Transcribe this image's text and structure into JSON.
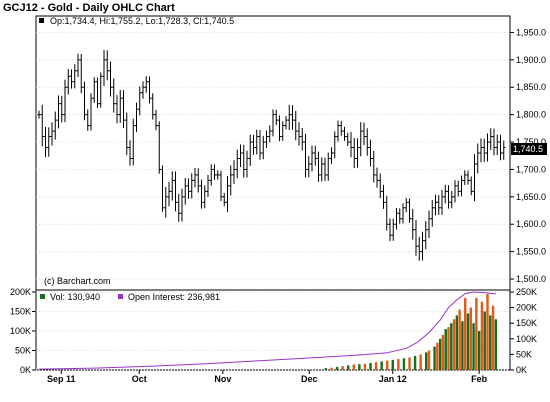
{
  "chart_data": [
    {
      "type": "ohlc",
      "title": "GCJ12 - Gold - Daily OHLC Chart",
      "legend": "Op:1,734.4, Hi:1,755.2, Lo:1,728.3, Cl:1,740.5",
      "last_price_label": "1,740.5",
      "credit": "(c) Barchart.com",
      "ylim": [
        1480,
        1980
      ],
      "y_ticks": [
        1500,
        1550,
        1600,
        1650,
        1700,
        1750,
        1800,
        1850,
        1900,
        1950
      ],
      "y_tick_labels": [
        "1,500.0",
        "1,550.0",
        "1,600.0",
        "1,650.0",
        "1,700.0",
        "1,750.0",
        "1,800.0",
        "1,850.0",
        "1,900.0",
        "1,950.0"
      ],
      "closes": [
        1800,
        1760,
        1740,
        1760,
        1770,
        1790,
        1820,
        1800,
        1850,
        1870,
        1860,
        1880,
        1900,
        1850,
        1800,
        1780,
        1830,
        1860,
        1820,
        1870,
        1900,
        1880,
        1850,
        1820,
        1800,
        1830,
        1790,
        1740,
        1720,
        1780,
        1810,
        1840,
        1850,
        1860,
        1830,
        1800,
        1780,
        1700,
        1630,
        1650,
        1660,
        1680,
        1640,
        1620,
        1650,
        1670,
        1660,
        1680,
        1690,
        1670,
        1640,
        1660,
        1680,
        1700,
        1690,
        1690,
        1650,
        1640,
        1670,
        1690,
        1700,
        1720,
        1730,
        1700,
        1720,
        1750,
        1740,
        1760,
        1730,
        1750,
        1760,
        1770,
        1800,
        1790,
        1760,
        1780,
        1790,
        1800,
        1790,
        1770,
        1760,
        1750,
        1700,
        1710,
        1730,
        1720,
        1690,
        1710,
        1690,
        1720,
        1730,
        1760,
        1780,
        1770,
        1760,
        1750,
        1740,
        1720,
        1740,
        1770,
        1760,
        1740,
        1720,
        1690,
        1680,
        1660,
        1640,
        1600,
        1580,
        1600,
        1620,
        1610,
        1630,
        1640,
        1610,
        1590,
        1560,
        1550,
        1570,
        1590,
        1610,
        1630,
        1640,
        1630,
        1650,
        1660,
        1640,
        1650,
        1670,
        1660,
        1680,
        1690,
        1680,
        1660,
        1710,
        1730,
        1740,
        1730,
        1750,
        1760,
        1740,
        1750,
        1730,
        1740
      ]
    },
    {
      "type": "bar",
      "legend_volume": "Vol: 130,940",
      "legend_oi": "Open Interest: 236,981",
      "left_ticks": [
        "0K",
        "50K",
        "100K",
        "150K",
        "200K"
      ],
      "left_max": 200000,
      "right_ticks": [
        "0K",
        "50K",
        "100K",
        "150K",
        "200K",
        "250K"
      ],
      "right_max": 250000,
      "x_labels": [
        "Sep 11",
        "Oct",
        "Nov",
        "Dec",
        "Jan 12",
        "Feb"
      ],
      "x_label_days": [
        8,
        36,
        66,
        97,
        127,
        158
      ],
      "total_days": 168,
      "volume_green": [
        [
          103,
          5000
        ],
        [
          107,
          8000
        ],
        [
          111,
          12000
        ],
        [
          115,
          15000
        ],
        [
          119,
          18000
        ],
        [
          123,
          22000
        ],
        [
          127,
          26000
        ],
        [
          131,
          30000
        ],
        [
          135,
          36000
        ],
        [
          139,
          45000
        ],
        [
          142,
          60000
        ],
        [
          144,
          80000
        ],
        [
          146,
          105000
        ],
        [
          148,
          120000
        ],
        [
          150,
          140000
        ],
        [
          152,
          125000
        ],
        [
          154,
          145000
        ],
        [
          156,
          120000
        ],
        [
          158,
          100000
        ],
        [
          160,
          150000
        ],
        [
          162,
          140000
        ],
        [
          164,
          130000
        ]
      ],
      "volume_orange": [
        [
          105,
          6000
        ],
        [
          109,
          10000
        ],
        [
          113,
          14000
        ],
        [
          117,
          16000
        ],
        [
          121,
          20000
        ],
        [
          125,
          24000
        ],
        [
          129,
          28000
        ],
        [
          133,
          32000
        ],
        [
          137,
          40000
        ],
        [
          140,
          50000
        ],
        [
          143,
          70000
        ],
        [
          145,
          90000
        ],
        [
          147,
          110000
        ],
        [
          149,
          130000
        ],
        [
          151,
          155000
        ],
        [
          153,
          185000
        ],
        [
          155,
          160000
        ],
        [
          157,
          185000
        ],
        [
          159,
          175000
        ],
        [
          161,
          195000
        ],
        [
          163,
          165000
        ]
      ],
      "open_interest": [
        [
          0,
          3000
        ],
        [
          20,
          6000
        ],
        [
          40,
          12000
        ],
        [
          60,
          20000
        ],
        [
          80,
          30000
        ],
        [
          100,
          40000
        ],
        [
          115,
          48000
        ],
        [
          125,
          55000
        ],
        [
          132,
          70000
        ],
        [
          136,
          90000
        ],
        [
          140,
          120000
        ],
        [
          144,
          160000
        ],
        [
          147,
          200000
        ],
        [
          150,
          225000
        ],
        [
          153,
          245000
        ],
        [
          156,
          250000
        ],
        [
          160,
          248000
        ],
        [
          164,
          244000
        ]
      ]
    }
  ]
}
